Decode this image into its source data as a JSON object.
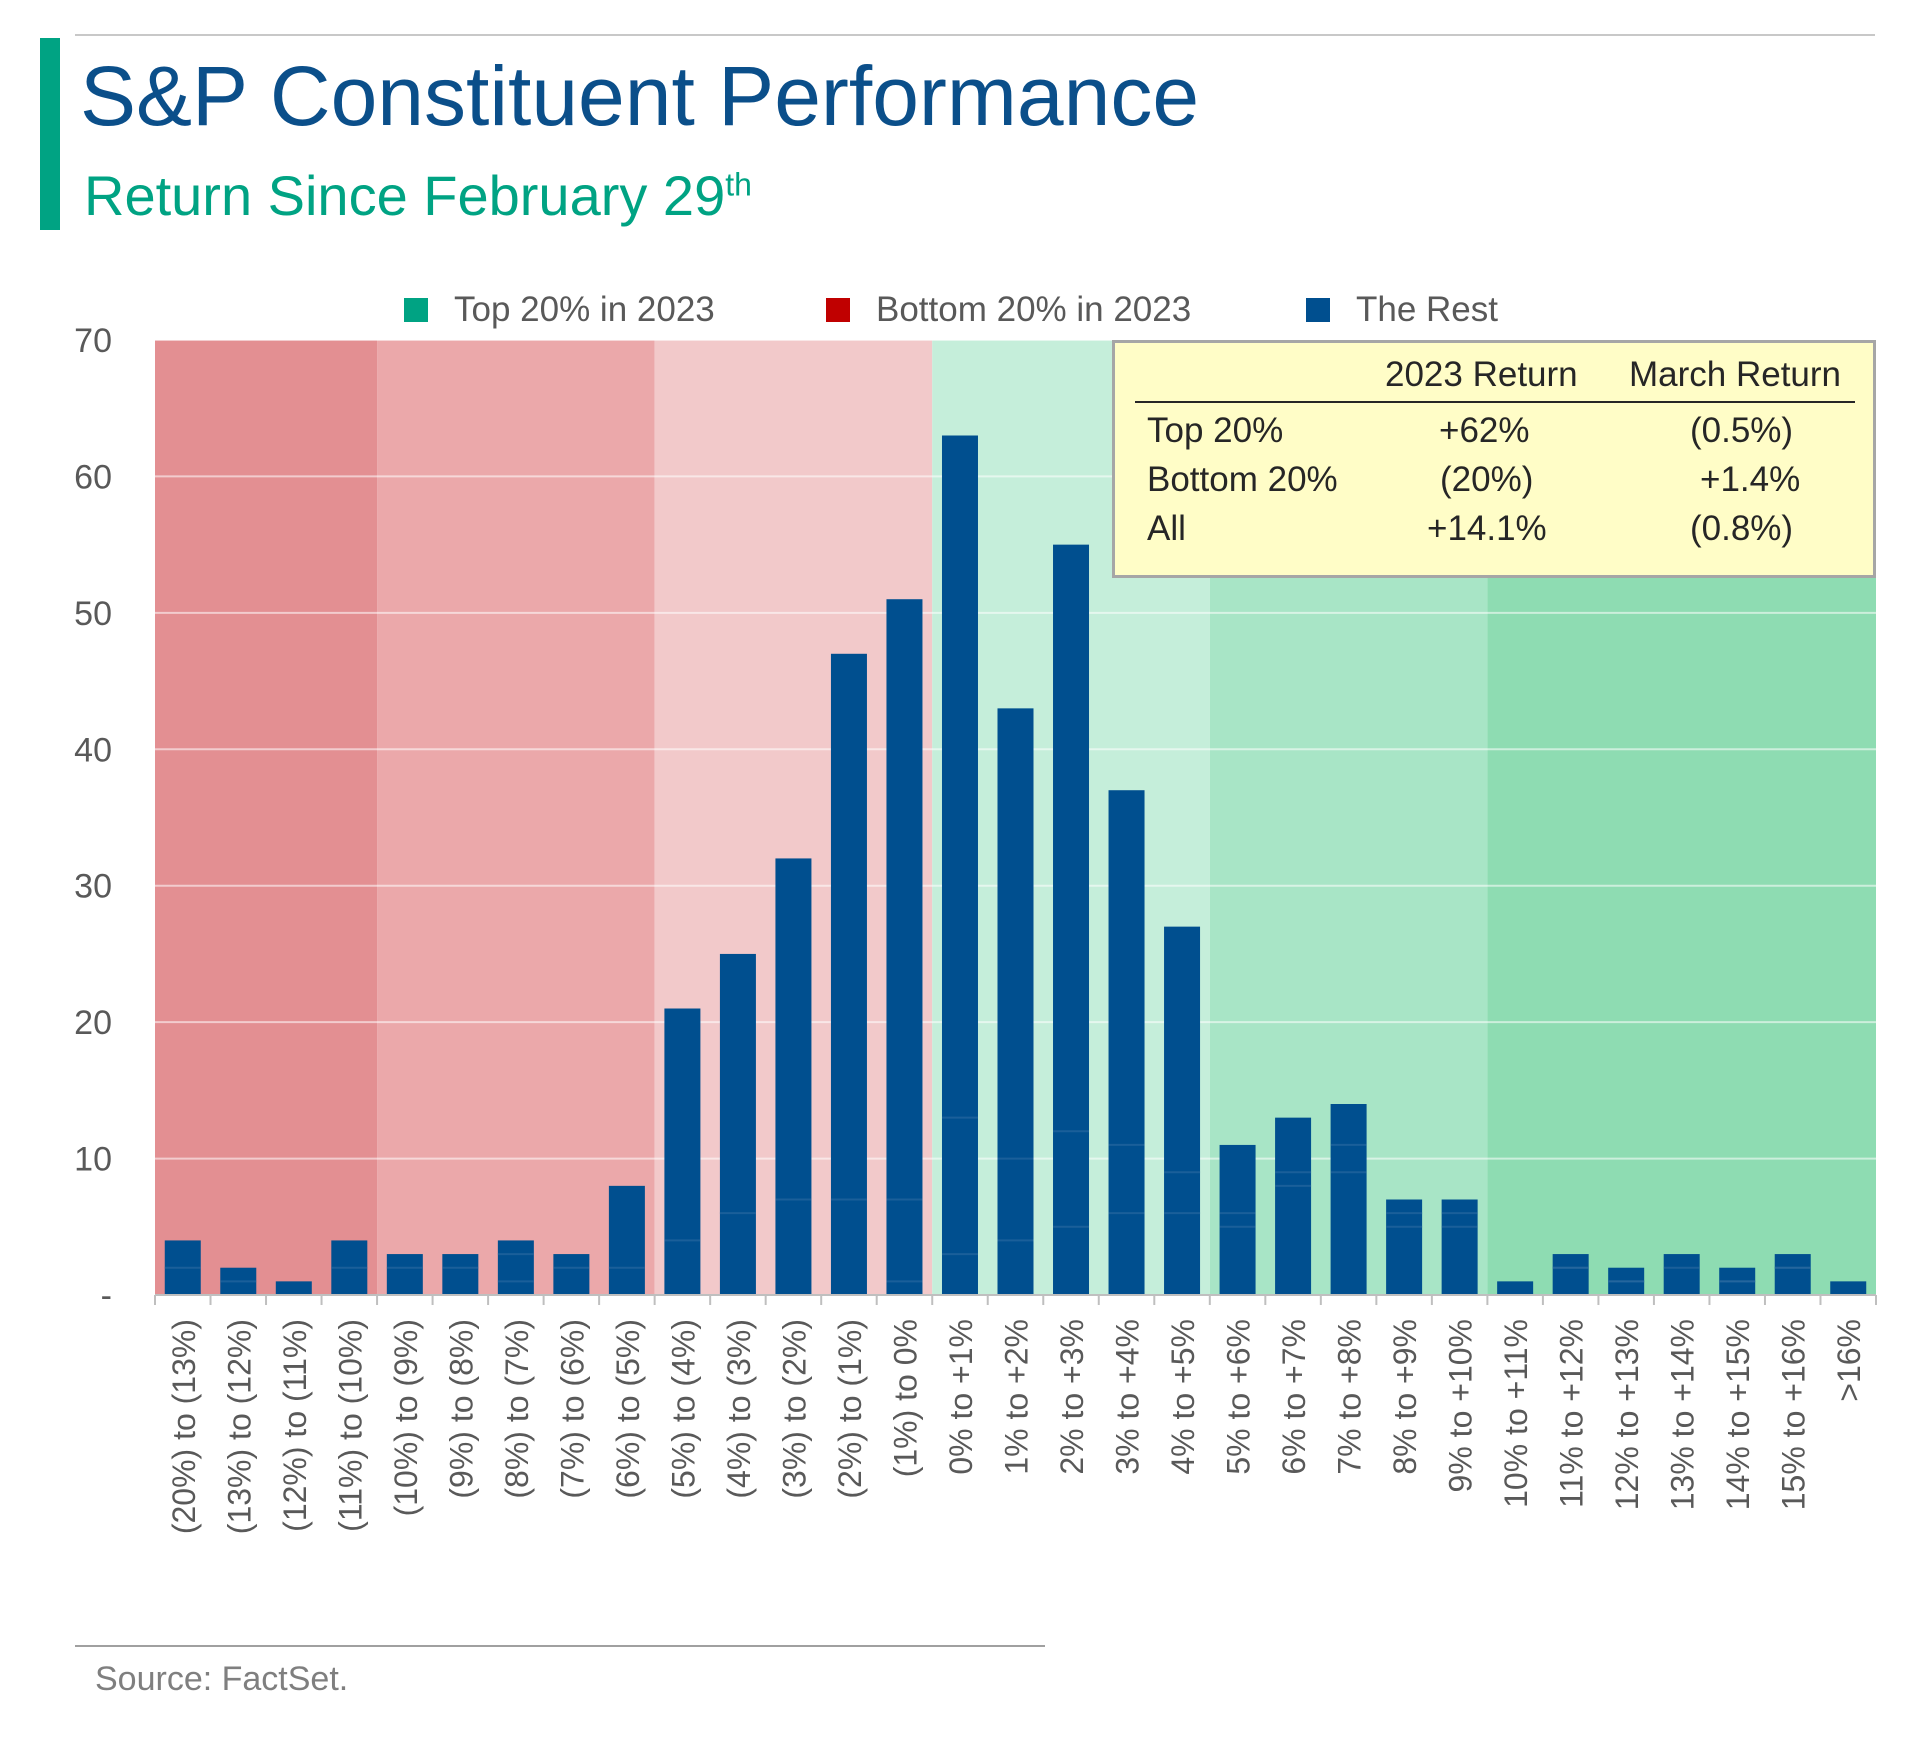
{
  "header": {
    "title": "S&P Constituent Performance",
    "subtitle": "Return Since February 29",
    "subtitle_sup": "th"
  },
  "legend": [
    {
      "label": "Top 20% in 2023",
      "color": "#00a383"
    },
    {
      "label": "Bottom 20% in 2023",
      "color": "#c00000"
    },
    {
      "label": "The Rest",
      "color": "#004f8f"
    }
  ],
  "returns_table": {
    "columns": [
      "2023 Return",
      "March Return"
    ],
    "rows": [
      {
        "label": "Top 20%",
        "ret_2023": "+62%",
        "ret_march": "(0.5%)"
      },
      {
        "label": "Bottom 20%",
        "ret_2023": "(20%)",
        "ret_march": "+1.4%"
      },
      {
        "label": "All",
        "ret_2023": "+14.1%",
        "ret_march": "(0.8%)"
      }
    ]
  },
  "source": "Source: FactSet.",
  "chart_data": {
    "type": "bar",
    "categories": [
      "(20%) to (13%)",
      "(13%) to (12%)",
      "(12%) to (11%)",
      "(11%) to (10%)",
      "(10%) to (9%)",
      "(9%) to (8%)",
      "(8%) to (7%)",
      "(7%) to (6%)",
      "(6%) to (5%)",
      "(5%) to (4%)",
      "(4%) to (3%)",
      "(3%) to (2%)",
      "(2%) to (1%)",
      "(1%) to 0%",
      "0% to +1%",
      "1% to +2%",
      "2% to +3%",
      "3% to +4%",
      "4% to +5%",
      "5% to +6%",
      "6% to +7%",
      "7% to +8%",
      "8% to +9%",
      "9% to +10%",
      "10% to +11%",
      "11% to +12%",
      "12% to +13%",
      "13% to +14%",
      "14% to +15%",
      "15% to +16%",
      ">16%"
    ],
    "series": [
      {
        "name": "Top 20% in 2023",
        "values": [
          2,
          0,
          0,
          2,
          0,
          0,
          1,
          0,
          0,
          0,
          0,
          0,
          0,
          1,
          3,
          4,
          5,
          6,
          6,
          5,
          8,
          9,
          5,
          5,
          0,
          2,
          1,
          2,
          1,
          2,
          1
        ]
      },
      {
        "name": "Bottom 20% in 2023",
        "values": [
          2,
          1,
          0,
          2,
          2,
          2,
          2,
          2,
          2,
          4,
          6,
          7,
          7,
          6,
          10,
          6,
          7,
          5,
          3,
          1,
          1,
          2,
          1,
          1,
          0,
          0,
          0,
          1,
          0,
          0,
          0
        ]
      },
      {
        "name": "The Rest",
        "values": [
          0,
          1,
          1,
          0,
          1,
          1,
          1,
          1,
          6,
          17,
          19,
          25,
          40,
          44,
          50,
          33,
          43,
          26,
          18,
          5,
          4,
          3,
          1,
          1,
          1,
          1,
          1,
          0,
          1,
          1,
          0
        ]
      }
    ],
    "totals": [
      4,
      2,
      1,
      4,
      3,
      3,
      4,
      3,
      8,
      21,
      25,
      32,
      47,
      51,
      63,
      43,
      55,
      37,
      27,
      11,
      13,
      14,
      7,
      7,
      1,
      3,
      2,
      3,
      2,
      3,
      1
    ],
    "ylim": [
      0,
      70
    ],
    "yticks": [
      "-",
      "10",
      "20",
      "30",
      "40",
      "50",
      "60",
      "70"
    ],
    "background_zones": [
      {
        "from": 0,
        "to": 3,
        "color": "#e38f92"
      },
      {
        "from": 4,
        "to": 8,
        "color": "#eba8aa"
      },
      {
        "from": 9,
        "to": 13,
        "color": "#f2c9ca"
      },
      {
        "from": 14,
        "to": 18,
        "color": "#c5eeda"
      },
      {
        "from": 19,
        "to": 23,
        "color": "#a8e5c6"
      },
      {
        "from": 24,
        "to": 30,
        "color": "#8edcb2"
      }
    ],
    "grid": true,
    "legend_position": "top"
  }
}
